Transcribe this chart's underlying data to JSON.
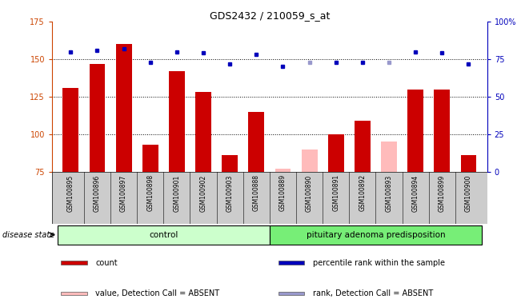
{
  "title": "GDS2432 / 210059_s_at",
  "samples": [
    "GSM100895",
    "GSM100896",
    "GSM100897",
    "GSM100898",
    "GSM100901",
    "GSM100902",
    "GSM100903",
    "GSM100888",
    "GSM100889",
    "GSM100890",
    "GSM100891",
    "GSM100892",
    "GSM100893",
    "GSM100894",
    "GSM100899",
    "GSM100900"
  ],
  "counts": [
    131,
    147,
    160,
    93,
    142,
    128,
    86,
    115,
    77,
    90,
    100,
    109,
    95,
    130,
    130,
    86
  ],
  "absent_flags": [
    false,
    false,
    false,
    false,
    false,
    false,
    false,
    false,
    true,
    true,
    false,
    false,
    true,
    false,
    false,
    false
  ],
  "percentile_ranks": [
    80,
    81,
    82,
    73,
    80,
    79,
    72,
    78,
    70,
    73,
    73,
    73,
    73,
    80,
    79,
    72
  ],
  "absent_rank_flags": [
    false,
    false,
    false,
    false,
    false,
    false,
    false,
    false,
    false,
    true,
    false,
    false,
    true,
    false,
    false,
    false
  ],
  "control_count": 8,
  "ylim_left": [
    75,
    175
  ],
  "ylim_right": [
    0,
    100
  ],
  "yticks_left": [
    75,
    100,
    125,
    150,
    175
  ],
  "yticks_right": [
    0,
    25,
    50,
    75,
    100
  ],
  "bar_color_normal": "#cc0000",
  "bar_color_absent": "#ffbbbb",
  "dot_color_normal": "#0000bb",
  "dot_color_absent": "#9999cc",
  "control_bg": "#ccffcc",
  "disease_bg": "#77ee77",
  "label_bg": "#cccccc",
  "legend_items": [
    {
      "label": "count",
      "color": "#cc0000"
    },
    {
      "label": "percentile rank within the sample",
      "color": "#0000bb"
    },
    {
      "label": "value, Detection Call = ABSENT",
      "color": "#ffbbbb"
    },
    {
      "label": "rank, Detection Call = ABSENT",
      "color": "#9999cc"
    }
  ]
}
